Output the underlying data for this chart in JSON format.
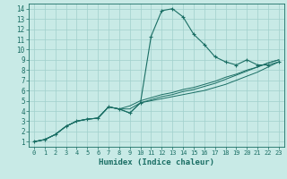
{
  "title": "",
  "xlabel": "Humidex (Indice chaleur)",
  "background_color": "#c8eae6",
  "grid_color": "#a0d0cc",
  "line_color": "#1a6e64",
  "xlim": [
    -0.5,
    23.5
  ],
  "ylim": [
    0.5,
    14.5
  ],
  "xticks": [
    0,
    1,
    2,
    3,
    4,
    5,
    6,
    7,
    8,
    9,
    10,
    11,
    12,
    13,
    14,
    15,
    16,
    17,
    18,
    19,
    20,
    21,
    22,
    23
  ],
  "yticks": [
    1,
    2,
    3,
    4,
    5,
    6,
    7,
    8,
    9,
    10,
    11,
    12,
    13,
    14
  ],
  "series1_x": [
    0,
    1,
    2,
    3,
    4,
    5,
    6,
    7,
    8,
    9,
    10,
    11,
    12,
    13,
    14,
    15,
    16,
    17,
    18,
    19,
    20,
    21,
    22,
    23
  ],
  "series1_y": [
    1.0,
    1.2,
    1.7,
    2.5,
    3.0,
    3.2,
    3.3,
    4.4,
    4.2,
    3.8,
    4.8,
    11.3,
    13.8,
    14.0,
    13.2,
    11.5,
    10.5,
    9.3,
    8.8,
    8.5,
    9.0,
    8.5,
    8.5,
    8.8
  ],
  "series2_x": [
    0,
    1,
    2,
    3,
    4,
    5,
    6,
    7,
    8,
    9,
    10,
    11,
    12,
    13,
    14,
    15,
    16,
    17,
    18,
    19,
    20,
    21,
    22,
    23
  ],
  "series2_y": [
    1.0,
    1.2,
    1.7,
    2.5,
    3.0,
    3.2,
    3.3,
    4.4,
    4.2,
    3.8,
    4.8,
    5.0,
    5.2,
    5.4,
    5.6,
    5.8,
    6.0,
    6.3,
    6.6,
    7.0,
    7.4,
    7.8,
    8.3,
    8.8
  ],
  "series3_x": [
    0,
    1,
    2,
    3,
    4,
    5,
    6,
    7,
    8,
    9,
    10,
    11,
    12,
    13,
    14,
    15,
    16,
    17,
    18,
    19,
    20,
    21,
    22,
    23
  ],
  "series3_y": [
    1.0,
    1.2,
    1.7,
    2.5,
    3.0,
    3.2,
    3.3,
    4.4,
    4.2,
    4.5,
    5.0,
    5.3,
    5.6,
    5.8,
    6.1,
    6.3,
    6.6,
    6.9,
    7.3,
    7.6,
    8.0,
    8.3,
    8.7,
    9.0
  ],
  "series4_x": [
    0,
    1,
    2,
    3,
    4,
    5,
    6,
    7,
    8,
    9,
    10,
    11,
    12,
    13,
    14,
    15,
    16,
    17,
    18,
    19,
    20,
    21,
    22,
    23
  ],
  "series4_y": [
    1.0,
    1.2,
    1.7,
    2.5,
    3.0,
    3.2,
    3.3,
    4.4,
    4.2,
    4.2,
    4.8,
    5.1,
    5.4,
    5.6,
    5.9,
    6.1,
    6.4,
    6.7,
    7.1,
    7.5,
    7.9,
    8.3,
    8.7,
    9.0
  ]
}
